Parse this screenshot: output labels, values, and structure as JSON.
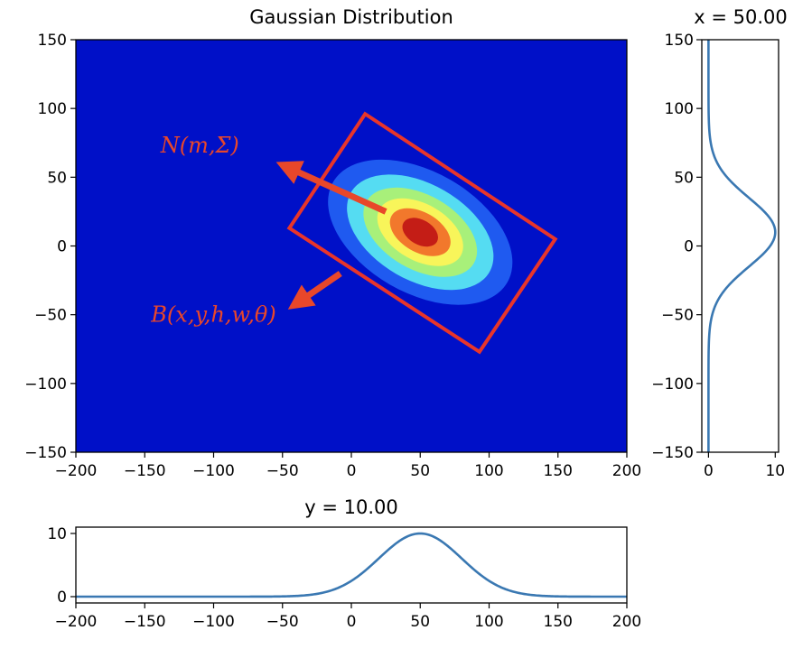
{
  "chart_data": [
    {
      "type": "heatmap",
      "title": "Gaussian Distribution",
      "xlabel": "",
      "ylabel": "",
      "xlim": [
        -200,
        200
      ],
      "ylim": [
        -150,
        150
      ],
      "xticks": [
        -200,
        -150,
        -100,
        -50,
        0,
        50,
        100,
        150,
        200
      ],
      "yticks": [
        -150,
        -100,
        -50,
        0,
        50,
        100,
        150
      ],
      "grid": false,
      "colormap": "jet",
      "background_color": "#0010c8",
      "gaussian": {
        "mean": [
          50,
          10
        ],
        "angle_deg": -30,
        "contours": [
          {
            "level": 1,
            "rx": 73,
            "ry": 44,
            "color": "#1f5af0"
          },
          {
            "level": 2,
            "rx": 58,
            "ry": 35,
            "color": "#55dcf2"
          },
          {
            "level": 3,
            "rx": 45,
            "ry": 27,
            "color": "#a8f07a"
          },
          {
            "level": 4,
            "rx": 34,
            "ry": 20.5,
            "color": "#f8f55a"
          },
          {
            "level": 5,
            "rx": 24,
            "ry": 14.5,
            "color": "#f2782c"
          },
          {
            "level": 6,
            "rx": 14,
            "ry": 9,
            "color": "#c41d16"
          }
        ]
      },
      "box": {
        "corners": [
          [
            10,
            96
          ],
          [
            148,
            5
          ],
          [
            93,
            -77
          ],
          [
            -45,
            13
          ]
        ],
        "color": "#e8352a"
      },
      "annotations": [
        {
          "text": "N(m,Σ)",
          "x": -110,
          "y": 68,
          "arrow_from": [
            25,
            25
          ],
          "arrow_to": [
            -48,
            58
          ]
        },
        {
          "text": "B(x,y,h,w,θ)",
          "x": -100,
          "y": -55,
          "arrow_from": [
            -8,
            -20
          ],
          "arrow_to": [
            -40,
            -42
          ]
        }
      ]
    },
    {
      "type": "line",
      "title": "x = 50.00",
      "xlim": [
        -1,
        10.5
      ],
      "ylim": [
        -150,
        150
      ],
      "xticks": [
        0,
        10
      ],
      "yticks": [
        -150,
        -100,
        -50,
        0,
        50,
        100,
        150
      ],
      "series": [
        {
          "color": "#3a78b2",
          "peak": 10,
          "center": 10,
          "sigma": 25
        }
      ]
    },
    {
      "type": "line",
      "title": "y = 10.00",
      "xlim": [
        -200,
        200
      ],
      "ylim": [
        -1,
        11
      ],
      "xticks": [
        -200,
        -150,
        -100,
        -50,
        0,
        50,
        100,
        150,
        200
      ],
      "yticks": [
        0,
        10
      ],
      "series": [
        {
          "color": "#3a78b2",
          "peak": 10,
          "center": 50,
          "sigma": 30
        }
      ]
    }
  ]
}
